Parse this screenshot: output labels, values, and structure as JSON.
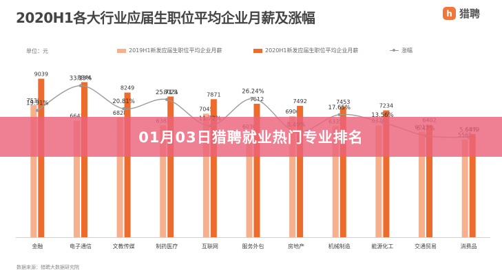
{
  "header": {
    "title": "2020H1各大行业应届生职位平均企业月薪及涨幅",
    "logo_text": "猎聘",
    "logo_mark": "h"
  },
  "banner": {
    "text": "01月03日猎聘就业热门专业排名"
  },
  "footer": {
    "source": "数据来源：猎聘大数据研究院"
  },
  "colors": {
    "series_2019": "#f6b08e",
    "series_2020": "#ec6b2d",
    "growth_line": "#9a9a9a",
    "banner": "#ec637a"
  },
  "chart_data": {
    "type": "bar",
    "unit_label": "单位：元",
    "categories": [
      "金融",
      "电子通信",
      "文教传媒",
      "制药医疗",
      "互联网",
      "服务外包",
      "房地产",
      "机械制造",
      "能源化工",
      "交通贸易",
      "消费品"
    ],
    "series": [
      {
        "name": "2019H1新发应届生职位平均企业月薪",
        "type": "bar",
        "values": [
          7538,
          6643,
          6828,
          6382,
          7045,
          6030,
          6906,
          6335,
          6370,
          6013,
          5565
        ]
      },
      {
        "name": "2020H1新发应届生职位平均企业月薪",
        "type": "bar",
        "values": [
          9039,
          8844,
          8249,
          8023,
          7871,
          7612,
          7492,
          7453,
          7234,
          6402,
          5879
        ]
      },
      {
        "name": "涨幅",
        "type": "line",
        "values": [
          19.91,
          33.13,
          20.81,
          25.71,
          11.72,
          26.24,
          8.49,
          17.65,
          13.56,
          6.47,
          5.64
        ],
        "labels": [
          "19.91%",
          "33.13%",
          "20.81%",
          "25.71%",
          "11.72%",
          "26.24%",
          "8.49%",
          "17.65%",
          "13.56%",
          "6.47%",
          "5.64%"
        ]
      }
    ],
    "ylim": [
      0,
      10000
    ],
    "growth_ylim": [
      0,
      40
    ],
    "legend_position": "top",
    "grid": false
  }
}
